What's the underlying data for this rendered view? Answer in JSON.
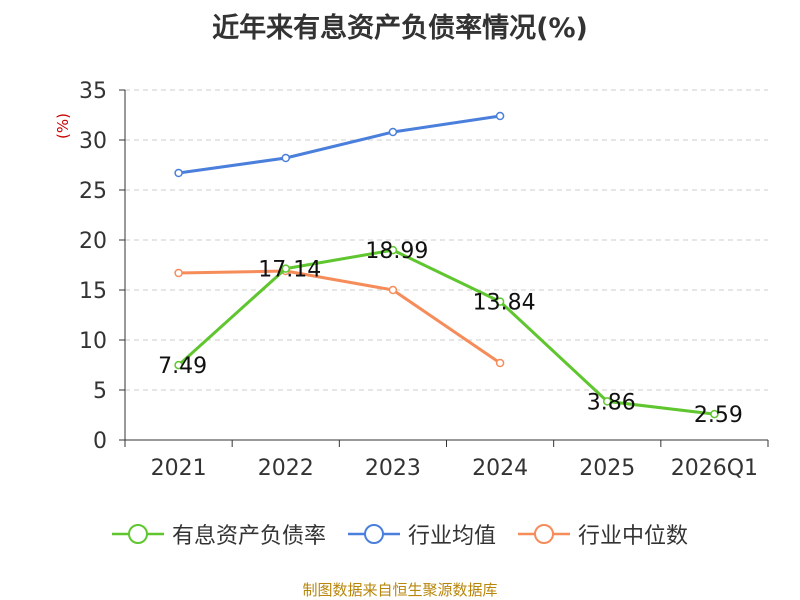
{
  "chart_data": {
    "type": "line",
    "title": "近年来有息资产负债率情况(%)",
    "ylabel": "(%)",
    "xlabel": "",
    "categories": [
      "2021",
      "2022",
      "2023",
      "2024",
      "2025",
      "2026Q1"
    ],
    "ylim": [
      0,
      35
    ],
    "yticks": [
      0,
      5,
      10,
      15,
      20,
      25,
      30,
      35
    ],
    "grid": true,
    "legend_position": "bottom",
    "series": [
      {
        "name": "有息资产负债率",
        "color": "#5fc62f",
        "values": [
          7.49,
          17.14,
          18.99,
          13.84,
          3.86,
          2.59
        ],
        "labels": [
          "7.49",
          "17.14",
          "18.99",
          "13.84",
          "3.86",
          "2.59"
        ]
      },
      {
        "name": "行业均值",
        "color": "#4a7fdc",
        "values": [
          26.7,
          28.2,
          30.8,
          32.4,
          null,
          null
        ]
      },
      {
        "name": "行业中位数",
        "color": "#f58c59",
        "values": [
          16.7,
          16.9,
          15.0,
          7.7,
          null,
          null
        ]
      }
    ]
  },
  "source": "制图数据来自恒生聚源数据库"
}
